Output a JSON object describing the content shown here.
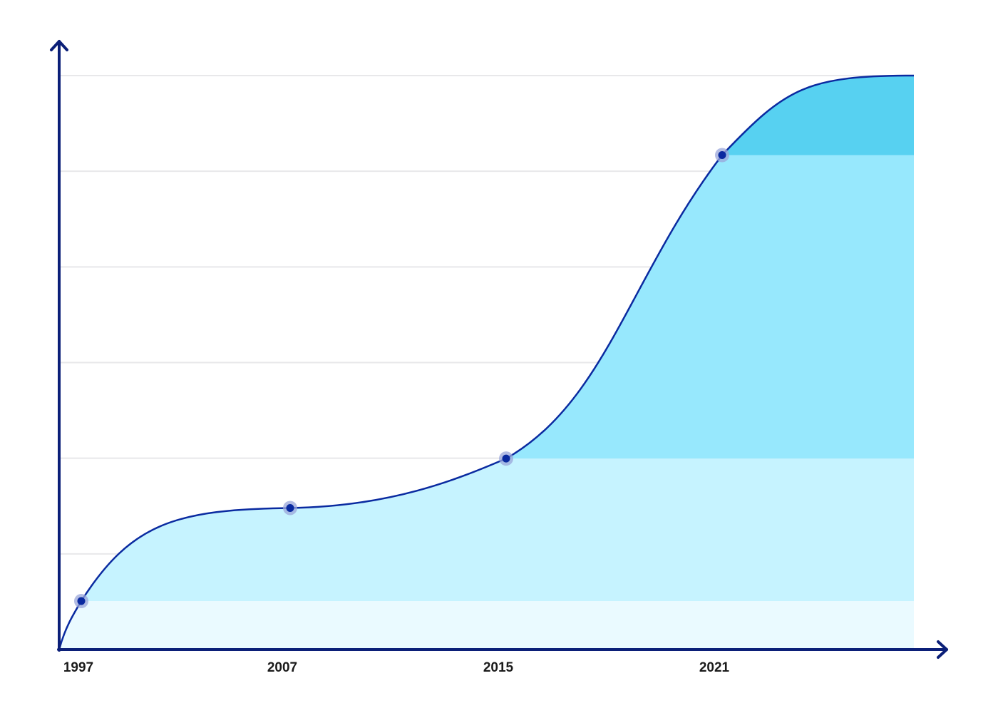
{
  "chart_data": {
    "type": "area",
    "title": "",
    "xlabel": "",
    "ylabel": "",
    "categories": [
      "1997",
      "2007",
      "2015",
      "2021"
    ],
    "x": [
      1997,
      2007,
      2015,
      2021
    ],
    "series": [
      {
        "values": [
          0.5,
          1.46,
          1.97,
          5.1
        ],
        "end_value": 5.92
      }
    ],
    "ylim": [
      0,
      5.92
    ],
    "grid": true,
    "legend": "none",
    "y_tick_labels": false,
    "colors": {
      "axis": "#0b1f78",
      "line": "#0a2aa0",
      "marker": "#0a2aa0",
      "marker_halo": "#9aa6da",
      "grid": "#e8e8ea",
      "band_fills": [
        "#eafaff",
        "#c6f3ff",
        "#97e8fd",
        "#57d1f1"
      ]
    }
  }
}
